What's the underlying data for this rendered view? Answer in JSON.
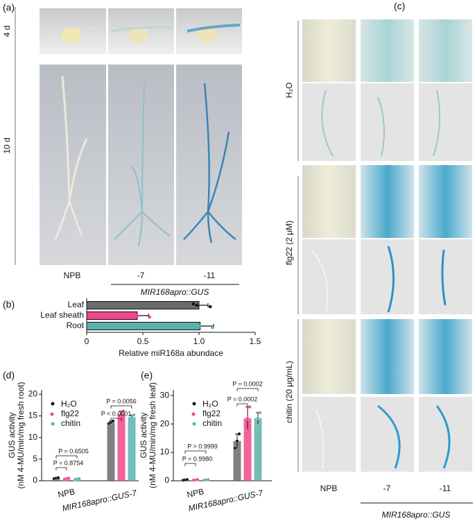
{
  "panel_labels": [
    "(a)",
    "(b)",
    "(c)",
    "(d)",
    "(e)"
  ],
  "panel_a": {
    "row_labels": [
      "4 d",
      "10 d"
    ],
    "columns": [
      "NPB",
      "-7",
      "-11"
    ],
    "construct": "MIR168apro::GUS"
  },
  "panel_c": {
    "row_labels": [
      "H₂O",
      "flg22 (2 μM)",
      "chitin (20 μg/mL)"
    ],
    "columns": [
      "NPB",
      "-7",
      "-11"
    ],
    "construct": "MIR168apro::GUS"
  },
  "chart_data": [
    {
      "type": "hbar",
      "categories": [
        "Leaf",
        "Leaf sheath",
        "Root"
      ],
      "values": [
        1.0,
        0.45,
        1.01
      ],
      "errors": [
        0.08,
        0.1,
        0.12
      ],
      "points": [
        [
          0.95,
          0.98,
          1.1
        ],
        [
          0.35,
          0.45,
          0.56
        ],
        [
          0.92,
          1.0,
          1.12
        ]
      ],
      "colors": [
        "#6b6b6b",
        "#f0468c",
        "#5bb1ad"
      ],
      "xlabel": "Relative miR168a abundace",
      "xlim": [
        0,
        1.5
      ],
      "xticks": [
        0,
        0.5,
        {
          "value": 1,
          "label": "1.0"
        },
        1.5
      ]
    },
    {
      "type": "grouped_bar",
      "ylabel": [
        "GUS activity",
        "(nM 4-MU/min/mg fresh root)"
      ],
      "categories": [
        "NPB",
        "MIR168apro::GUS-7"
      ],
      "series": [
        {
          "name": "H₂O",
          "color": "#6b6b6b",
          "values": [
            0.6,
            13.5
          ],
          "errors": [
            0.15,
            0.3
          ],
          "points": [
            [
              0.5,
              0.6,
              0.7
            ],
            [
              13.2,
              13.5,
              13.8
            ]
          ]
        },
        {
          "name": "flg22",
          "color": "#f0468c",
          "values": [
            0.5,
            15.5
          ],
          "errors": [
            0.1,
            0.6
          ],
          "points": [
            [
              0.4,
              0.5,
              0.6
            ],
            [
              15.0,
              15.5,
              16.1
            ]
          ]
        },
        {
          "name": "chitin",
          "color": "#5bb1ad",
          "values": [
            0.4,
            14.7
          ],
          "errors": [
            0.1,
            0.5
          ],
          "points": [
            [
              0.3,
              0.4,
              0.5
            ],
            [
              14.2,
              14.7,
              15.2
            ]
          ]
        }
      ],
      "ylim": [
        0,
        21
      ],
      "yticks": [
        0,
        5,
        10,
        15,
        20
      ],
      "annotations": [
        "P = 0.8754",
        "P = 0.6505",
        "P < 0.0001",
        "P = 0.0056"
      ]
    },
    {
      "type": "grouped_bar",
      "ylabel": [
        "GUS activity",
        "(nM 4-MU/min/mg fresh leaf)"
      ],
      "categories": [
        "NPB",
        "MIR168apro::GUS-7"
      ],
      "series": [
        {
          "name": "H₂O",
          "color": "#6b6b6b",
          "values": [
            0.3,
            14
          ],
          "errors": [
            0.1,
            2.5
          ],
          "points": [
            [
              0.2,
              0.3,
              0.4
            ],
            [
              11.5,
              14,
              16.5
            ]
          ]
        },
        {
          "name": "flg22",
          "color": "#f0468c",
          "values": [
            0.3,
            22
          ],
          "errors": [
            0.1,
            4
          ],
          "points": [
            [
              0.2,
              0.3,
              0.4
            ],
            [
              18,
              22,
              26
            ]
          ]
        },
        {
          "name": "chitin",
          "color": "#5bb1ad",
          "values": [
            0.3,
            22
          ],
          "errors": [
            0.1,
            2
          ],
          "points": [
            [
              0.2,
              0.3,
              0.4
            ],
            [
              20,
              22,
              24
            ]
          ]
        }
      ],
      "ylim": [
        0,
        32
      ],
      "yticks": [
        0,
        10,
        20,
        30
      ],
      "annotations": [
        "P = 0.9980",
        "P > 0.9999",
        "P = 0.0002",
        "P = 0.0002"
      ]
    }
  ]
}
